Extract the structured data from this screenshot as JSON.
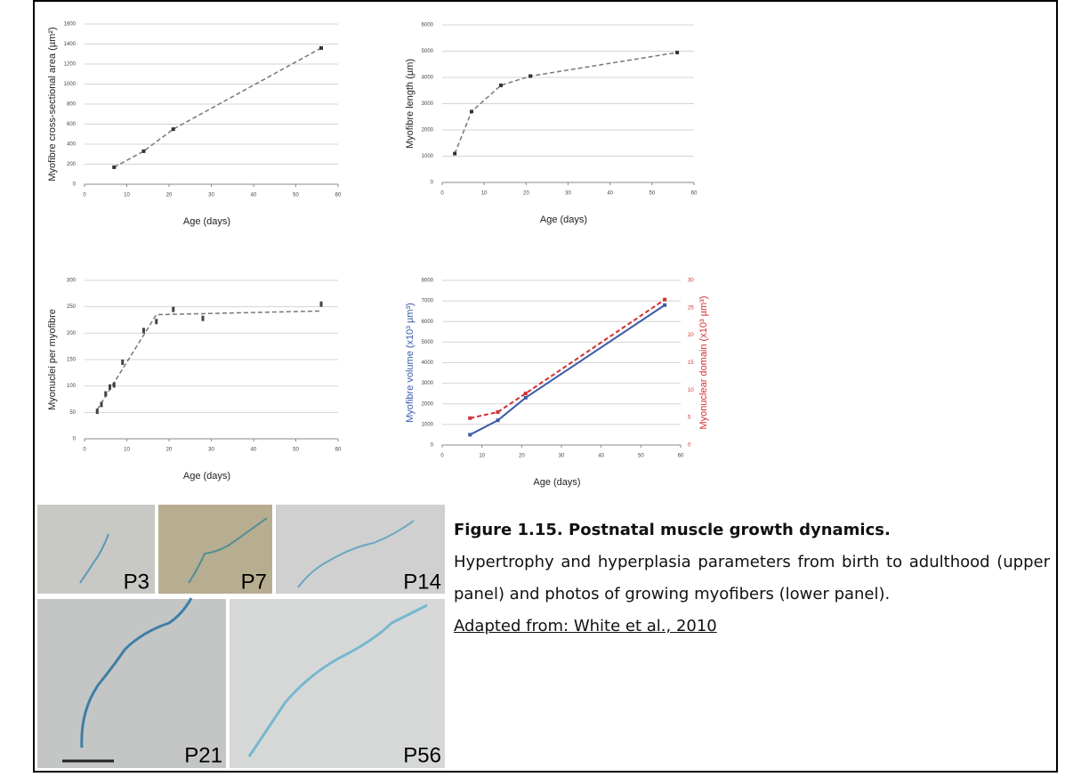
{
  "chart_data": [
    {
      "type": "line",
      "ylabel": "Myofibre cross-sectional area (µm²)",
      "xlabel": "Age (days)",
      "x": [
        7,
        14,
        21,
        56
      ],
      "values": [
        170,
        330,
        550,
        1360
      ],
      "color": "#777777",
      "dashed": true,
      "xlim": [
        0,
        60
      ],
      "xticks": [
        0,
        10,
        20,
        30,
        40,
        50,
        60
      ],
      "ylim": [
        0,
        1600
      ],
      "yticks": [
        0,
        200,
        400,
        600,
        800,
        1000,
        1200,
        1400,
        1600
      ],
      "grid": true
    },
    {
      "type": "line",
      "ylabel": "Myofibre length (µm)",
      "xlabel": "Age (days)",
      "x": [
        3,
        7,
        14,
        21,
        56
      ],
      "values": [
        1100,
        2700,
        3700,
        4050,
        4950
      ],
      "color": "#777777",
      "dashed": true,
      "xlim": [
        0,
        60
      ],
      "xticks": [
        0,
        10,
        20,
        30,
        40,
        50,
        60
      ],
      "ylim": [
        0,
        6000
      ],
      "yticks": [
        0,
        1000,
        2000,
        3000,
        4000,
        5000,
        6000
      ],
      "grid": true
    },
    {
      "type": "scatter",
      "ylabel": "Myonuclei per myofibre",
      "xlabel": "Age (days)",
      "x": [
        3,
        4,
        5,
        6,
        7,
        9,
        14,
        17,
        21,
        28,
        56
      ],
      "values": [
        52,
        65,
        85,
        98,
        102,
        145,
        205,
        222,
        245,
        228,
        255
      ],
      "color": "#444444",
      "trend": {
        "x": [
          3,
          17,
          56
        ],
        "values": [
          55,
          235,
          242
        ],
        "color": "#777777"
      },
      "xlim": [
        0,
        60
      ],
      "xticks": [
        0,
        10,
        20,
        30,
        40,
        50,
        60
      ],
      "ylim": [
        0,
        300
      ],
      "yticks": [
        0,
        50,
        100,
        150,
        200,
        250,
        300
      ],
      "grid": true
    },
    {
      "type": "line",
      "ylabel": "Myofibre volume (x10³ µm³)",
      "y2label": "Myonuclear domain (x10³ µm³)",
      "xlabel": "Age (days)",
      "x": [
        7,
        14,
        21,
        56
      ],
      "series": [
        {
          "color": "#3a5aa8",
          "values": [
            500,
            1200,
            2300,
            6800
          ]
        },
        {
          "color": "#d33030",
          "values": [
            4.9,
            6,
            9.4,
            26.5
          ],
          "axis": "y2",
          "dashed": true
        }
      ],
      "xlim": [
        0,
        60
      ],
      "xticks": [
        0,
        10,
        20,
        30,
        40,
        50,
        60
      ],
      "ylim": [
        0,
        8000
      ],
      "yticks": [
        0,
        1000,
        2000,
        3000,
        4000,
        5000,
        6000,
        7000,
        8000
      ],
      "y2lim": [
        0,
        30
      ],
      "y2ticks": [
        0,
        5,
        10,
        15,
        20,
        25,
        30
      ],
      "grid": true
    }
  ],
  "photos": {
    "labels": [
      "P3",
      "P7",
      "P14",
      "P21",
      "P56"
    ]
  },
  "caption": {
    "title": "Figure 1.15. Postnatal muscle growth dynamics.",
    "text": "Hypertrophy and hyperplasia parameters from birth to adulthood (upper panel) and photos of growing myofibers (lower panel).",
    "source": "Adapted from: White et al., 2010"
  }
}
